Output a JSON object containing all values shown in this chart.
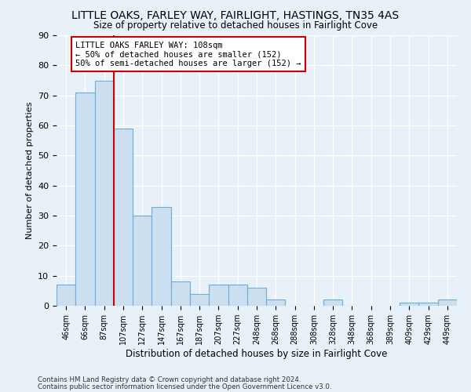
{
  "title1": "LITTLE OAKS, FARLEY WAY, FAIRLIGHT, HASTINGS, TN35 4AS",
  "title2": "Size of property relative to detached houses in Fairlight Cove",
  "xlabel": "Distribution of detached houses by size in Fairlight Cove",
  "ylabel": "Number of detached properties",
  "categories": [
    "46sqm",
    "66sqm",
    "87sqm",
    "107sqm",
    "127sqm",
    "147sqm",
    "167sqm",
    "187sqm",
    "207sqm",
    "227sqm",
    "248sqm",
    "268sqm",
    "288sqm",
    "308sqm",
    "328sqm",
    "348sqm",
    "368sqm",
    "389sqm",
    "409sqm",
    "429sqm",
    "449sqm"
  ],
  "values": [
    7,
    71,
    75,
    59,
    30,
    33,
    8,
    4,
    7,
    7,
    6,
    2,
    0,
    0,
    2,
    0,
    0,
    0,
    1,
    1,
    2
  ],
  "bar_color": "#ccdff0",
  "bar_edge_color": "#6aaed6",
  "red_line_index": 3,
  "marker_color": "#cc0000",
  "annotation_text": "LITTLE OAKS FARLEY WAY: 108sqm\n← 50% of detached houses are smaller (152)\n50% of semi-detached houses are larger (152) →",
  "annotation_box_color": "#ffffff",
  "annotation_box_edge_color": "#cc0000",
  "footer1": "Contains HM Land Registry data © Crown copyright and database right 2024.",
  "footer2": "Contains public sector information licensed under the Open Government Licence v3.0.",
  "ylim": [
    0,
    90
  ],
  "yticks": [
    0,
    10,
    20,
    30,
    40,
    50,
    60,
    70,
    80,
    90
  ],
  "background_color": "#e8f0f8",
  "grid_color": "#ffffff",
  "fig_width": 6.0,
  "fig_height": 5.0,
  "dpi": 100
}
